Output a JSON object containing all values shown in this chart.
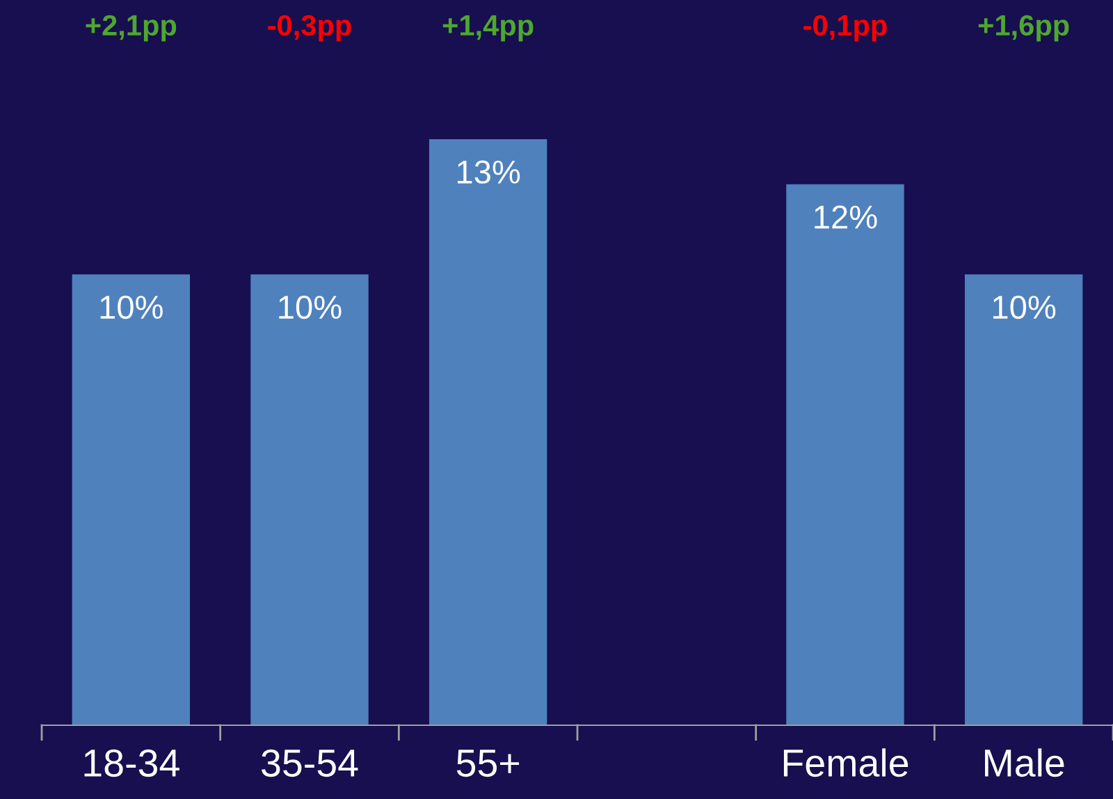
{
  "chart_data": {
    "type": "bar",
    "categories": [
      "18-34",
      "35-54",
      "55+",
      null,
      "Female",
      "Male"
    ],
    "values": [
      10,
      10,
      13,
      null,
      12,
      10
    ],
    "value_labels": [
      "10%",
      "10%",
      "13%",
      null,
      "12%",
      "10%"
    ],
    "color": "#4f81bd",
    "ylim": [
      0,
      16
    ],
    "tick_labels": "x",
    "grid": false,
    "legend": false,
    "annotations": [
      "+2,1pp",
      "-0,3pp",
      "+1,4pp",
      "-0,1pp",
      "+1,6pp"
    ]
  }
}
